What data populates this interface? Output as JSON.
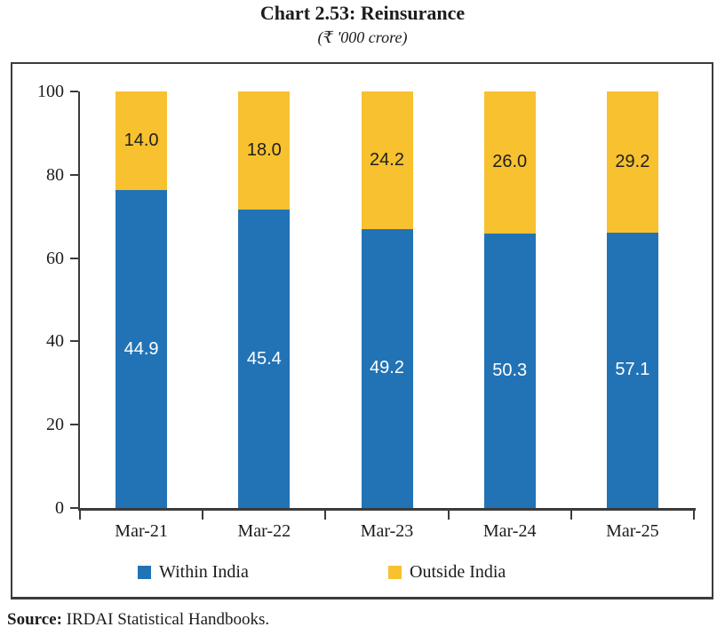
{
  "page": {
    "title": "Chart 2.53: Reinsurance",
    "subtitle": "(₹ '000 crore)",
    "source_label": "Source:",
    "source_text": " IRDAI Statistical Handbooks."
  },
  "chart_data": {
    "type": "bar",
    "stacked": true,
    "stacking": "percent",
    "title": "Chart 2.53: Reinsurance",
    "subtitle": "(₹ '000 crore)",
    "categories": [
      "Mar-21",
      "Mar-22",
      "Mar-23",
      "Mar-24",
      "Mar-25"
    ],
    "series": [
      {
        "name": "Within India",
        "color": "#2273B5",
        "label_color": "#FFFFFF",
        "values": [
          44.9,
          45.4,
          49.2,
          50.3,
          57.1
        ],
        "labels": [
          "44.9",
          "45.4",
          "49.2",
          "50.3",
          "57.1"
        ]
      },
      {
        "name": "Outside India",
        "color": "#F7C12F",
        "label_color": "#1F1F1F",
        "values": [
          14.0,
          18.0,
          24.2,
          26.0,
          29.2
        ],
        "labels": [
          "14.0",
          "18.0",
          "24.2",
          "26.0",
          "29.2"
        ]
      }
    ],
    "y_axis": {
      "min": 0,
      "max": 100,
      "tick_interval": 20,
      "ticks": [
        0,
        20,
        40,
        60,
        80,
        100
      ]
    },
    "x_axis_label": "",
    "y_axis_label": "",
    "grid": false,
    "legend_position": "bottom",
    "axis_color": "#3B3B3B"
  }
}
